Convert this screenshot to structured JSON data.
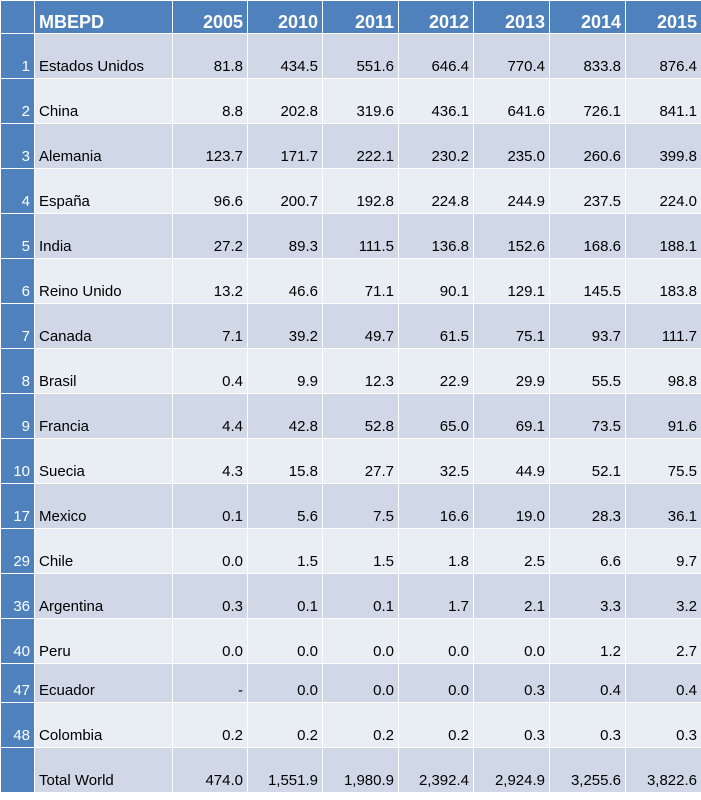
{
  "table": {
    "header": [
      "MBEPD",
      "2005",
      "2010",
      "2011",
      "2012",
      "2013",
      "2014",
      "2015"
    ],
    "rows": [
      {
        "rank": "1",
        "country": "Estados Unidos",
        "values": [
          "81.8",
          "434.5",
          "551.6",
          "646.4",
          "770.4",
          "833.8",
          "876.4"
        ]
      },
      {
        "rank": "2",
        "country": "China",
        "values": [
          "8.8",
          "202.8",
          "319.6",
          "436.1",
          "641.6",
          "726.1",
          "841.1"
        ]
      },
      {
        "rank": "3",
        "country": "Alemania",
        "values": [
          "123.7",
          "171.7",
          "222.1",
          "230.2",
          "235.0",
          "260.6",
          "399.8"
        ]
      },
      {
        "rank": "4",
        "country": "España",
        "values": [
          "96.6",
          "200.7",
          "192.8",
          "224.8",
          "244.9",
          "237.5",
          "224.0"
        ]
      },
      {
        "rank": "5",
        "country": "India",
        "values": [
          "27.2",
          "89.3",
          "111.5",
          "136.8",
          "152.6",
          "168.6",
          "188.1"
        ]
      },
      {
        "rank": "6",
        "country": "Reino Unido",
        "values": [
          "13.2",
          "46.6",
          "71.1",
          "90.1",
          "129.1",
          "145.5",
          "183.8"
        ]
      },
      {
        "rank": "7",
        "country": "Canada",
        "values": [
          "7.1",
          "39.2",
          "49.7",
          "61.5",
          "75.1",
          "93.7",
          "111.7"
        ]
      },
      {
        "rank": "8",
        "country": "Brasil",
        "values": [
          "0.4",
          "9.9",
          "12.3",
          "22.9",
          "29.9",
          "55.5",
          "98.8"
        ]
      },
      {
        "rank": "9",
        "country": "Francia",
        "values": [
          "4.4",
          "42.8",
          "52.8",
          "65.0",
          "69.1",
          "73.5",
          "91.6"
        ]
      },
      {
        "rank": "10",
        "country": "Suecia",
        "values": [
          "4.3",
          "15.8",
          "27.7",
          "32.5",
          "44.9",
          "52.1",
          "75.5"
        ]
      },
      {
        "rank": "17",
        "country": "Mexico",
        "values": [
          "0.1",
          "5.6",
          "7.5",
          "16.6",
          "19.0",
          "28.3",
          "36.1"
        ]
      },
      {
        "rank": "29",
        "country": "Chile",
        "values": [
          "0.0",
          "1.5",
          "1.5",
          "1.8",
          "2.5",
          "6.6",
          "9.7"
        ]
      },
      {
        "rank": "36",
        "country": "Argentina",
        "values": [
          "0.3",
          "0.1",
          "0.1",
          "1.7",
          "2.1",
          "3.3",
          "3.2"
        ]
      },
      {
        "rank": "40",
        "country": "Peru",
        "values": [
          "0.0",
          "0.0",
          "0.0",
          "0.0",
          "0.0",
          "1.2",
          "2.7"
        ]
      },
      {
        "rank": "47",
        "country": "Ecuador",
        "values": [
          "-",
          "0.0",
          "0.0",
          "0.0",
          "0.3",
          "0.4",
          "0.4"
        ]
      },
      {
        "rank": "48",
        "country": "Colombia",
        "values": [
          "0.2",
          "0.2",
          "0.2",
          "0.2",
          "0.3",
          "0.3",
          "0.3"
        ]
      },
      {
        "rank": "",
        "country": "Total World",
        "values": [
          "474.0",
          "1,551.9",
          "1,980.9",
          "2,392.4",
          "2,924.9",
          "3,255.6",
          "3,822.6"
        ]
      }
    ]
  },
  "colors": {
    "header_bg": "#4f81bd",
    "row_band_dark": "#d0d8e8",
    "row_band_light": "#e9edf4"
  }
}
